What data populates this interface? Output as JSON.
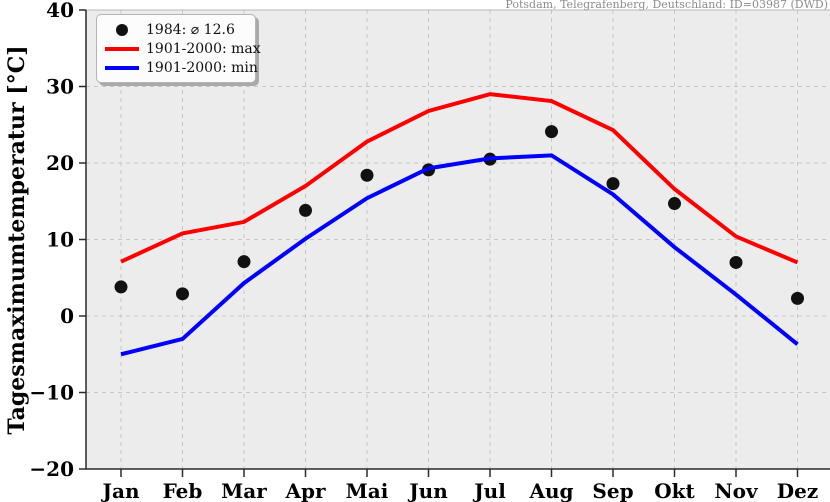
{
  "station": "Potsdam, Telegrafenberg, Deutschland: ID=03987 (DWD)",
  "colors": {
    "max_line": "#ff0000",
    "min_line": "#0000ff",
    "dots": "#111111",
    "plot_bg": "#ececec",
    "grid": "#c7c7c7",
    "station_text": "#8c8c8c"
  },
  "legend": {
    "items": [
      {
        "label": "1984: ⌀ 12.6",
        "marker": "dot"
      },
      {
        "label": "1901-2000: max",
        "marker": "red-line"
      },
      {
        "label": "1901-2000: min",
        "marker": "blue-line"
      }
    ]
  },
  "chart_data": {
    "type": "line",
    "title": "Potsdam, Telegrafenberg, Deutschland: ID=03987 (DWD)",
    "ylabel": "Tagesmaximumtemperatur [°C]",
    "xlabel": "",
    "ylim": [
      -20,
      40
    ],
    "grid": "dashed, vertical at each month and horizontal every 10°C",
    "legend_position": "upper left",
    "categories": [
      "Jan",
      "Feb",
      "Mar",
      "Apr",
      "Mai",
      "Jun",
      "Jul",
      "Aug",
      "Sep",
      "Okt",
      "Nov",
      "Dez"
    ],
    "y_ticks": [
      40,
      30,
      20,
      10,
      0,
      -10,
      -20
    ],
    "y_tick_labels": [
      "40",
      "30",
      "20",
      "10",
      "0",
      "−10",
      "−20"
    ],
    "series": [
      {
        "name": "1984: ⌀ 12.6",
        "type": "scatter",
        "color": "#111111",
        "values": [
          3.8,
          2.9,
          7.1,
          13.8,
          18.4,
          19.1,
          20.5,
          24.1,
          17.3,
          14.7,
          7.0,
          2.3
        ],
        "mean": 12.6
      },
      {
        "name": "1901-2000: max",
        "type": "line",
        "color": "#ff0000",
        "values": [
          7.1,
          10.8,
          12.3,
          17.0,
          22.8,
          26.8,
          29.0,
          28.1,
          24.3,
          16.6,
          10.4,
          7.0
        ]
      },
      {
        "name": "1901-2000: min",
        "type": "line",
        "color": "#0000ff",
        "values": [
          -5.0,
          -3.0,
          4.3,
          10.1,
          15.4,
          19.3,
          20.6,
          21.0,
          15.9,
          9.0,
          2.8,
          -3.7
        ]
      }
    ]
  }
}
